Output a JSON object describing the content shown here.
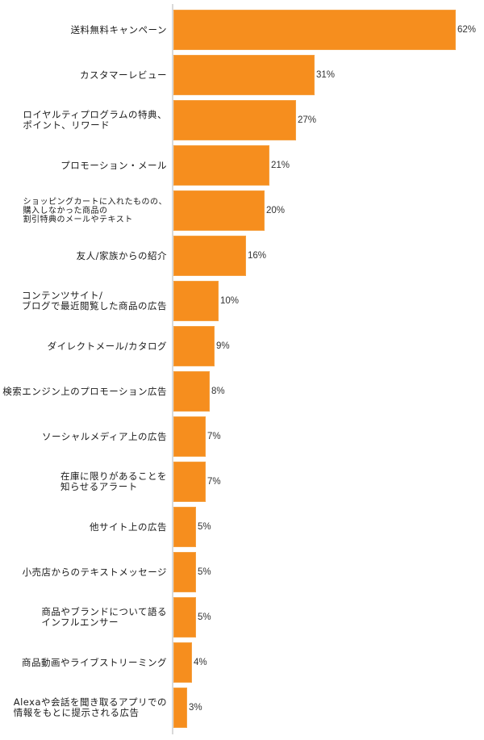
{
  "chart_data": {
    "type": "bar",
    "orientation": "horizontal",
    "title": "",
    "xlabel": "",
    "ylabel": "",
    "xlim": [
      0,
      62
    ],
    "grid": false,
    "legend": null,
    "bar_color": "#f68e1e",
    "categories": [
      "送料無料キャンペーン",
      "カスタマーレビュー",
      "ロイヤルティプログラムの特典、\nポイント、リワード",
      "プロモーション・メール",
      "ショッピングカートに入れたものの、\n購入しなかった商品の\n割引特典のメールやテキスト",
      "友人/家族からの紹介",
      "コンテンツサイト/\nブログで最近閲覧した商品の広告",
      "ダイレクトメール/カタログ",
      "検索エンジン上のプロモーション広告",
      "ソーシャルメディア上の広告",
      "在庫に限りがあることを\n知らせるアラート",
      "他サイト上の広告",
      "小売店からのテキストメッセージ",
      "商品やブランドについて語る\nインフルエンサー",
      "商品動画やライブストリーミング",
      "Alexaや会話を聞き取るアプリでの\n情報をもとに提示される広告"
    ],
    "values": [
      62,
      31,
      27,
      21,
      20,
      16,
      10,
      9,
      8,
      7,
      7,
      5,
      5,
      5,
      4,
      3
    ],
    "value_labels": [
      "62%",
      "31%",
      "27%",
      "21%",
      "20%",
      "16%",
      "10%",
      "9%",
      "8%",
      "7%",
      "7%",
      "5%",
      "5%",
      "5%",
      "4%",
      "3%"
    ]
  }
}
